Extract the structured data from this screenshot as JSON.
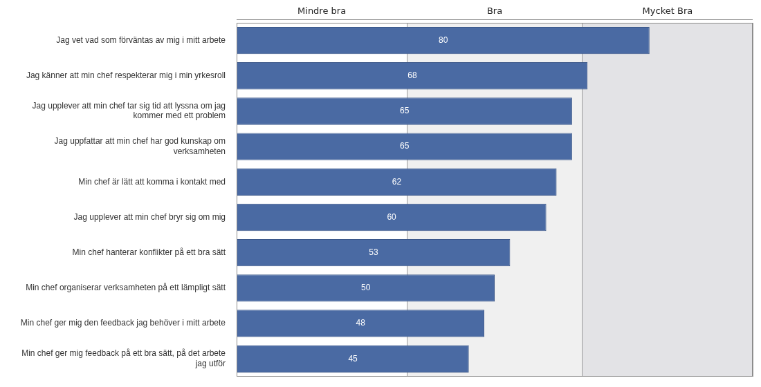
{
  "chart_data": {
    "type": "bar",
    "orientation": "horizontal",
    "categories": [
      "Jag vet vad som förväntas av mig i mitt arbete",
      "Jag känner att min chef respekterar mig i min yrkesroll",
      "Jag upplever att min chef tar sig tid att lyssna om jag kommer med ett problem",
      "Jag uppfattar att min chef har god kunskap om verksamheten",
      "Min chef är lätt att komma i kontakt med",
      "Jag upplever att min chef bryr sig om mig",
      "Min chef hanterar konflikter på ett bra sätt",
      "Min chef organiserar verksamheten på ett lämpligt sätt",
      "Min chef ger mig den feedback jag behöver i mitt arbete",
      "Min chef ger mig feedback på ett bra sätt, på det arbete jag utför"
    ],
    "values": [
      80,
      68,
      65,
      65,
      62,
      60,
      53,
      50,
      48,
      45
    ],
    "color": "#4a6aa3",
    "xlim": [
      0,
      100
    ],
    "xticks": [
      0,
      33,
      67,
      100
    ],
    "grid": true,
    "tick_labels": "y",
    "data_labels": true,
    "bands": [
      {
        "label": "Mindre bra",
        "from": 0,
        "to": 33
      },
      {
        "label": "Bra",
        "from": 33,
        "to": 67
      },
      {
        "label": "Mycket Bra",
        "from": 67,
        "to": 100
      }
    ]
  }
}
